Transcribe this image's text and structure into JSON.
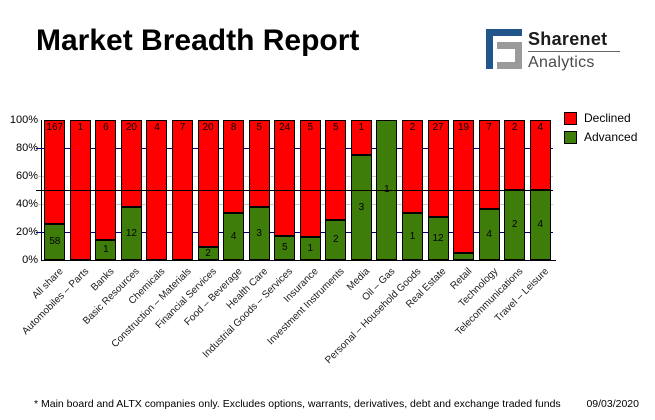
{
  "header": {
    "title": "Market Breadth Report",
    "logo": {
      "name": "Sharenet",
      "tagline": "Analytics",
      "icon": "sharenet-s-mark",
      "blue": "#20568a",
      "gray": "#9a9a9a"
    }
  },
  "chart_data": {
    "type": "bar",
    "stacked": true,
    "normalized": "percent-of-total",
    "categories": [
      "All share",
      "Automobiles – Parts",
      "Banks",
      "Basic Resources",
      "Chemicals",
      "Construction – Materials",
      "Financial Services",
      "Food – Beverage",
      "Health Care",
      "Industrial Goods – Services",
      "Insurance",
      "Investment Instruments",
      "Media",
      "Oil – Gas",
      "Personal – Household Goods",
      "Real Estate",
      "Retail",
      "Technology",
      "Telecommunications",
      "Travel – Leisure"
    ],
    "series": [
      {
        "name": "Declined",
        "color": "#ff0000",
        "values": [
          167,
          1,
          6,
          20,
          4,
          7,
          20,
          8,
          5,
          24,
          5,
          5,
          1,
          0,
          2,
          27,
          19,
          7,
          2,
          4
        ]
      },
      {
        "name": "Advanced",
        "color": "#3e7d0a",
        "values": [
          58,
          0,
          1,
          12,
          0,
          0,
          2,
          4,
          3,
          5,
          1,
          2,
          3,
          1,
          1,
          12,
          1,
          4,
          2,
          4
        ]
      }
    ],
    "y_ticks": [
      "0%",
      "20%",
      "40%",
      "60%",
      "80%",
      "100%"
    ],
    "ylim": [
      0,
      100
    ],
    "reference_line_pct": 50,
    "gridlines": [
      {
        "pct": 20,
        "color": "#000080"
      },
      {
        "pct": 40,
        "color": "#c8c8c8"
      },
      {
        "pct": 60,
        "color": "#c8c8c8"
      },
      {
        "pct": 80,
        "color": "#000080"
      }
    ],
    "legend": [
      {
        "label": "Declined",
        "color": "#ff0000"
      },
      {
        "label": "Advanced",
        "color": "#3e7d0a"
      }
    ],
    "legend_position": "top-right",
    "grid": true
  },
  "footer": {
    "note": "* Main board and ALTX companies only. Excludes options, warrants, derivatives, debt and exchange traded funds",
    "date": "09/03/2020"
  }
}
